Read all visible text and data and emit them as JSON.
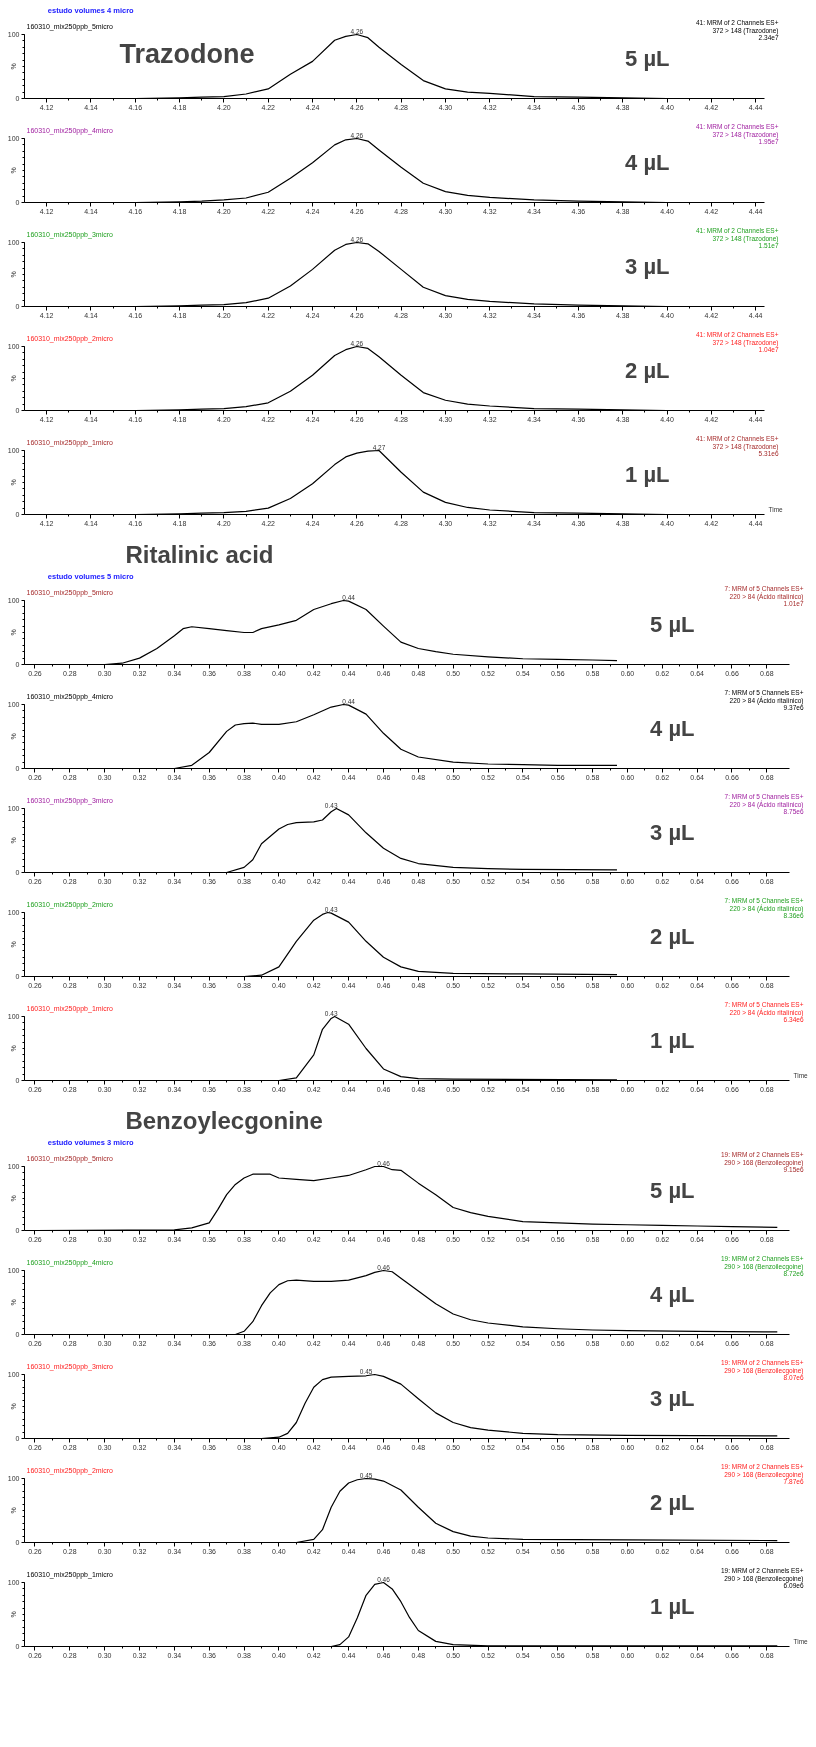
{
  "chart_data": [
    {
      "type": "line",
      "subtitle": "estudo volumes 4 micro",
      "title": "160310_mix250ppb_5micro",
      "ylabel": "%",
      "color": "#000000",
      "x": [
        4.115,
        4.14,
        4.16,
        4.18,
        4.19,
        4.2,
        4.21,
        4.22,
        4.23,
        4.24,
        4.25,
        4.255,
        4.26,
        4.265,
        4.27,
        4.28,
        4.29,
        4.3,
        4.31,
        4.32,
        4.34,
        4.36,
        4.38,
        4.4,
        4.42
      ],
      "values": [
        0,
        0,
        0,
        1,
        2,
        3,
        7,
        15,
        38,
        58,
        91,
        97,
        100,
        95,
        80,
        53,
        28,
        15,
        10,
        8,
        3,
        2,
        1,
        0,
        0
      ],
      "xlim": [
        4.11,
        4.444
      ],
      "ylim": [
        0,
        100
      ],
      "xticks": [
        4.12,
        4.14,
        4.16,
        4.18,
        {
          "value": 4.2,
          "label": "4.20"
        },
        4.22,
        4.24,
        4.26,
        4.28,
        {
          "value": 4.3,
          "label": "4.30"
        },
        4.32,
        4.34,
        4.36,
        4.38,
        {
          "value": 4.4,
          "label": "4.40"
        },
        4.42,
        4.44
      ],
      "yticks": [
        0,
        100
      ],
      "annotations": [
        "Trazodone",
        "5 µL",
        "41: MRM of 2 Channels ES+",
        "372 > 148 (Trazodone)",
        "2.34e7",
        {
          "text": "4.26",
          "x": 4.26,
          "y": 100
        }
      ]
    },
    {
      "type": "line",
      "title": "160310_mix250ppb_4micro",
      "ylabel": "%",
      "color": "#000000",
      "x": [
        4.115,
        4.14,
        4.16,
        4.18,
        4.19,
        4.2,
        4.21,
        4.22,
        4.23,
        4.24,
        4.25,
        4.255,
        4.26,
        4.265,
        4.27,
        4.28,
        4.29,
        4.3,
        4.31,
        4.32,
        4.34,
        4.36,
        4.38,
        4.4,
        4.42
      ],
      "values": [
        0,
        0,
        0,
        1,
        2,
        4,
        7,
        16,
        38,
        62,
        90,
        98,
        100,
        96,
        82,
        55,
        30,
        17,
        11,
        8,
        4,
        2,
        1,
        0,
        0
      ],
      "xlim": [
        4.11,
        4.444
      ],
      "ylim": [
        0,
        100
      ],
      "xticks": [
        4.12,
        4.14,
        4.16,
        4.18,
        {
          "value": 4.2,
          "label": "4.20"
        },
        4.22,
        4.24,
        4.26,
        4.28,
        {
          "value": 4.3,
          "label": "4.30"
        },
        4.32,
        4.34,
        4.36,
        4.38,
        {
          "value": 4.4,
          "label": "4.40"
        },
        4.42,
        4.44
      ],
      "yticks": [
        0,
        100
      ],
      "annotations": [
        "4 µL",
        "41: MRM of 2 Channels ES+",
        "372 > 148 (Trazodone)",
        "1.95e7",
        {
          "text": "4.26",
          "x": 4.26,
          "y": 100
        }
      ]
    },
    {
      "type": "line",
      "title": "160310_mix250ppb_3micro",
      "ylabel": "%",
      "color": "#000000",
      "x": [
        4.115,
        4.14,
        4.16,
        4.18,
        4.19,
        4.2,
        4.21,
        4.22,
        4.23,
        4.24,
        4.25,
        4.255,
        4.26,
        4.265,
        4.27,
        4.28,
        4.29,
        4.3,
        4.31,
        4.32,
        4.34,
        4.36,
        4.38,
        4.4,
        4.42
      ],
      "values": [
        0,
        0,
        0,
        1,
        2,
        3,
        6,
        13,
        32,
        58,
        88,
        97,
        100,
        98,
        86,
        58,
        30,
        17,
        11,
        8,
        4,
        2,
        1,
        0,
        0
      ],
      "xlim": [
        4.11,
        4.444
      ],
      "ylim": [
        0,
        100
      ],
      "xticks": [
        4.12,
        4.14,
        4.16,
        4.18,
        {
          "value": 4.2,
          "label": "4.20"
        },
        4.22,
        4.24,
        4.26,
        4.28,
        {
          "value": 4.3,
          "label": "4.30"
        },
        4.32,
        4.34,
        4.36,
        4.38,
        {
          "value": 4.4,
          "label": "4.40"
        },
        4.42,
        4.44
      ],
      "yticks": [
        0,
        100
      ],
      "annotations": [
        "3 µL",
        "41: MRM of 2 Channels ES+",
        "372 > 148 (Trazodone)",
        "1.51e7",
        {
          "text": "4.26",
          "x": 4.26,
          "y": 100
        }
      ]
    },
    {
      "type": "line",
      "title": "160310_mix250ppb_2micro",
      "ylabel": "%",
      "color": "#000000",
      "x": [
        4.115,
        4.14,
        4.16,
        4.18,
        4.19,
        4.2,
        4.21,
        4.22,
        4.23,
        4.24,
        4.25,
        4.255,
        4.26,
        4.265,
        4.27,
        4.28,
        4.29,
        4.3,
        4.31,
        4.32,
        4.34,
        4.36,
        4.38,
        4.4,
        4.42
      ],
      "values": [
        0,
        0,
        0,
        1,
        2,
        3,
        6,
        12,
        30,
        55,
        86,
        95,
        100,
        97,
        84,
        55,
        28,
        16,
        10,
        7,
        3,
        2,
        1,
        0,
        0
      ],
      "xlim": [
        4.11,
        4.444
      ],
      "ylim": [
        0,
        100
      ],
      "xticks": [
        4.12,
        4.14,
        4.16,
        4.18,
        {
          "value": 4.2,
          "label": "4.20"
        },
        4.22,
        4.24,
        4.26,
        4.28,
        {
          "value": 4.3,
          "label": "4.30"
        },
        4.32,
        4.34,
        4.36,
        4.38,
        {
          "value": 4.4,
          "label": "4.40"
        },
        4.42,
        4.44
      ],
      "yticks": [
        0,
        100
      ],
      "annotations": [
        "2 µL",
        "41: MRM of 2 Channels ES+",
        "372 > 148 (Trazodone)",
        "1.04e7",
        {
          "text": "4.26",
          "x": 4.26,
          "y": 100
        }
      ]
    },
    {
      "type": "line",
      "title": "160310_mix250ppb_1micro",
      "xlabel": "Time",
      "ylabel": "%",
      "color": "#000000",
      "x": [
        4.115,
        4.14,
        4.16,
        4.18,
        4.19,
        4.2,
        4.21,
        4.22,
        4.23,
        4.24,
        4.25,
        4.255,
        4.26,
        4.265,
        4.27,
        4.28,
        4.29,
        4.3,
        4.31,
        4.32,
        4.34,
        4.36,
        4.38,
        4.4,
        4.42
      ],
      "values": [
        0,
        0,
        0,
        1,
        2,
        3,
        5,
        10,
        25,
        48,
        78,
        90,
        96,
        99,
        100,
        66,
        35,
        19,
        11,
        7,
        3,
        2,
        1,
        0,
        0
      ],
      "xlim": [
        4.11,
        4.444
      ],
      "ylim": [
        0,
        100
      ],
      "xticks": [
        4.12,
        4.14,
        4.16,
        4.18,
        {
          "value": 4.2,
          "label": "4.20"
        },
        4.22,
        4.24,
        4.26,
        4.28,
        {
          "value": 4.3,
          "label": "4.30"
        },
        4.32,
        4.34,
        4.36,
        4.38,
        {
          "value": 4.4,
          "label": "4.40"
        },
        4.42,
        4.44
      ],
      "yticks": [
        0,
        100
      ],
      "annotations": [
        "1 µL",
        "41: MRM of 2 Channels ES+",
        "372 > 148 (Trazodone)",
        "5.31e6",
        {
          "text": "4.27",
          "x": 4.27,
          "y": 100
        }
      ]
    },
    {
      "type": "line",
      "subtitle": "estudo volumes 5 micro",
      "title": "160310_mix250ppb_5micro",
      "ylabel": "%",
      "color": "#000000",
      "x": [
        0.26,
        0.3,
        0.31,
        0.32,
        0.33,
        0.34,
        0.345,
        0.35,
        0.36,
        0.37,
        0.38,
        0.385,
        0.39,
        0.4,
        0.41,
        0.42,
        0.43,
        0.437,
        0.44,
        0.45,
        0.46,
        0.47,
        0.48,
        0.49,
        0.5,
        0.52,
        0.54,
        0.56,
        0.58,
        0.594
      ],
      "values": [
        0,
        0,
        2,
        10,
        25,
        45,
        56,
        59,
        56,
        53,
        50,
        50,
        56,
        62,
        69,
        86,
        95,
        100,
        99,
        86,
        60,
        35,
        25,
        20,
        16,
        12,
        9,
        8,
        7,
        6
      ],
      "xlim": [
        0.254,
        0.693
      ],
      "ylim": [
        0,
        100
      ],
      "xticks": [
        0.26,
        0.28,
        {
          "value": 0.3,
          "label": "0.30"
        },
        0.32,
        0.34,
        0.36,
        0.38,
        {
          "value": 0.4,
          "label": "0.40"
        },
        0.42,
        0.44,
        0.46,
        0.48,
        {
          "value": 0.5,
          "label": "0.50"
        },
        0.52,
        0.54,
        0.56,
        0.58,
        {
          "value": 0.6,
          "label": "0.60"
        },
        0.62,
        0.64,
        0.66,
        0.68
      ],
      "yticks": [
        0,
        100
      ],
      "annotations": [
        "Ritalinic acid",
        "5 µL",
        "7: MRM of 5 Channels ES+",
        "220 > 84 (Ácido ritalínico)",
        "1.01e7",
        {
          "text": "0.44",
          "x": 0.44,
          "y": 100
        }
      ]
    },
    {
      "type": "line",
      "title": "160310_mix250ppb_4micro",
      "ylabel": "%",
      "color": "#000000",
      "x": [
        0.26,
        0.34,
        0.35,
        0.36,
        0.37,
        0.375,
        0.38,
        0.385,
        0.39,
        0.4,
        0.41,
        0.42,
        0.43,
        0.437,
        0.44,
        0.45,
        0.46,
        0.47,
        0.48,
        0.5,
        0.52,
        0.54,
        0.56,
        0.594
      ],
      "values": [
        0,
        0,
        5,
        25,
        58,
        68,
        70,
        71,
        69,
        69,
        73,
        84,
        96,
        100,
        99,
        85,
        55,
        30,
        18,
        10,
        7,
        6,
        5,
        5
      ],
      "xlim": [
        0.254,
        0.693
      ],
      "ylim": [
        0,
        100
      ],
      "xticks": [
        0.26,
        0.28,
        {
          "value": 0.3,
          "label": "0.30"
        },
        0.32,
        0.34,
        0.36,
        0.38,
        {
          "value": 0.4,
          "label": "0.40"
        },
        0.42,
        0.44,
        0.46,
        0.48,
        {
          "value": 0.5,
          "label": "0.50"
        },
        0.52,
        0.54,
        0.56,
        0.58,
        {
          "value": 0.6,
          "label": "0.60"
        },
        0.62,
        0.64,
        0.66,
        0.68
      ],
      "yticks": [
        0,
        100
      ],
      "annotations": [
        "4 µL",
        "7: MRM of 5 Channels ES+",
        "220 > 84 (Ácido ritalínico)",
        "9.37e6",
        {
          "text": "0.44",
          "x": 0.44,
          "y": 100
        }
      ]
    },
    {
      "type": "line",
      "title": "160310_mix250ppb_3micro",
      "ylabel": "%",
      "color": "#000000",
      "x": [
        0.26,
        0.37,
        0.38,
        0.385,
        0.39,
        0.4,
        0.405,
        0.41,
        0.42,
        0.425,
        0.43,
        0.433,
        0.44,
        0.45,
        0.46,
        0.47,
        0.48,
        0.5,
        0.52,
        0.54,
        0.594
      ],
      "values": [
        0,
        0,
        8,
        20,
        45,
        68,
        75,
        78,
        79,
        82,
        95,
        100,
        90,
        62,
        38,
        22,
        14,
        8,
        6,
        5,
        4
      ],
      "xlim": [
        0.254,
        0.693
      ],
      "ylim": [
        0,
        100
      ],
      "xticks": [
        0.26,
        0.28,
        {
          "value": 0.3,
          "label": "0.30"
        },
        0.32,
        0.34,
        0.36,
        0.38,
        {
          "value": 0.4,
          "label": "0.40"
        },
        0.42,
        0.44,
        0.46,
        0.48,
        {
          "value": 0.5,
          "label": "0.50"
        },
        0.52,
        0.54,
        0.56,
        0.58,
        {
          "value": 0.6,
          "label": "0.60"
        },
        0.62,
        0.64,
        0.66,
        0.68
      ],
      "yticks": [
        0,
        100
      ],
      "annotations": [
        "3 µL",
        "7: MRM of 5 Channels ES+",
        "220 > 84 (Ácido ritalínico)",
        "8.75e6",
        {
          "text": "0.43",
          "x": 0.43,
          "y": 100
        }
      ]
    },
    {
      "type": "line",
      "title": "160310_mix250ppb_2micro",
      "ylabel": "%",
      "color": "#000000",
      "x": [
        0.26,
        0.38,
        0.39,
        0.4,
        0.41,
        0.42,
        0.425,
        0.428,
        0.43,
        0.44,
        0.45,
        0.46,
        0.47,
        0.48,
        0.5,
        0.54,
        0.594
      ],
      "values": [
        0,
        0,
        2,
        15,
        55,
        88,
        97,
        100,
        99,
        85,
        55,
        30,
        15,
        8,
        5,
        4,
        3
      ],
      "xlim": [
        0.254,
        0.693
      ],
      "ylim": [
        0,
        100
      ],
      "xticks": [
        0.26,
        0.28,
        {
          "value": 0.3,
          "label": "0.30"
        },
        0.32,
        0.34,
        0.36,
        0.38,
        {
          "value": 0.4,
          "label": "0.40"
        },
        0.42,
        0.44,
        0.46,
        0.48,
        {
          "value": 0.5,
          "label": "0.50"
        },
        0.52,
        0.54,
        0.56,
        0.58,
        {
          "value": 0.6,
          "label": "0.60"
        },
        0.62,
        0.64,
        0.66,
        0.68
      ],
      "yticks": [
        0,
        100
      ],
      "annotations": [
        "2 µL",
        "7: MRM of 5 Channels ES+",
        "220 > 84 (Ácido ritalínico)",
        "8.36e6",
        {
          "text": "0.43",
          "x": 0.43,
          "y": 100
        }
      ]
    },
    {
      "type": "line",
      "title": "160310_mix250ppb_1micro",
      "xlabel": "Time",
      "ylabel": "%",
      "color": "#000000",
      "x": [
        0.26,
        0.4,
        0.41,
        0.42,
        0.425,
        0.43,
        0.432,
        0.44,
        0.45,
        0.46,
        0.47,
        0.48,
        0.5,
        0.594
      ],
      "values": [
        0,
        0,
        4,
        40,
        80,
        97,
        100,
        88,
        50,
        18,
        6,
        3,
        2,
        1
      ],
      "xlim": [
        0.254,
        0.693
      ],
      "ylim": [
        0,
        100
      ],
      "xticks": [
        0.26,
        0.28,
        {
          "value": 0.3,
          "label": "0.30"
        },
        0.32,
        0.34,
        0.36,
        0.38,
        {
          "value": 0.4,
          "label": "0.40"
        },
        0.42,
        0.44,
        0.46,
        0.48,
        {
          "value": 0.5,
          "label": "0.50"
        },
        0.52,
        0.54,
        0.56,
        0.58,
        {
          "value": 0.6,
          "label": "0.60"
        },
        0.62,
        0.64,
        0.66,
        0.68
      ],
      "yticks": [
        0,
        100
      ],
      "annotations": [
        "1 µL",
        "7: MRM of 5 Channels ES+",
        "220 > 84 (Ácido ritalínico)",
        "6.34e6",
        {
          "text": "0.43",
          "x": 0.43,
          "y": 100
        }
      ]
    },
    {
      "type": "line",
      "subtitle": "estudo volumes 3 micro",
      "title": "160310_mix250ppb_5micro",
      "ylabel": "%",
      "color": "#000000",
      "x": [
        0.26,
        0.34,
        0.35,
        0.36,
        0.365,
        0.37,
        0.375,
        0.38,
        0.385,
        0.39,
        0.395,
        0.4,
        0.41,
        0.42,
        0.43,
        0.44,
        0.45,
        0.455,
        0.46,
        0.465,
        0.47,
        0.48,
        0.49,
        0.5,
        0.51,
        0.52,
        0.54,
        0.56,
        0.58,
        0.6,
        0.62,
        0.64,
        0.66,
        0.686
      ],
      "values": [
        0,
        1,
        4,
        12,
        33,
        56,
        72,
        82,
        88,
        88,
        88,
        82,
        80,
        78,
        82,
        86,
        95,
        100,
        100,
        95,
        94,
        74,
        56,
        36,
        28,
        22,
        14,
        12,
        10,
        9,
        8,
        7,
        6,
        5
      ],
      "xlim": [
        0.254,
        0.693
      ],
      "ylim": [
        0,
        100
      ],
      "xticks": [
        0.26,
        0.28,
        {
          "value": 0.3,
          "label": "0.30"
        },
        0.32,
        0.34,
        0.36,
        0.38,
        {
          "value": 0.4,
          "label": "0.40"
        },
        0.42,
        0.44,
        0.46,
        0.48,
        {
          "value": 0.5,
          "label": "0.50"
        },
        0.52,
        0.54,
        0.56,
        0.58,
        {
          "value": 0.6,
          "label": "0.60"
        },
        0.62,
        0.64,
        0.66,
        0.68
      ],
      "yticks": [
        0,
        100
      ],
      "annotations": [
        "Benzoylecgonine",
        "5 µL",
        "19: MRM of 2 Channels ES+",
        "290 > 168 (Benzoilecgoine)",
        "9.15e6",
        {
          "text": "0.46",
          "x": 0.46,
          "y": 100
        }
      ]
    },
    {
      "type": "line",
      "title": "160310_mix250ppb_4micro",
      "ylabel": "%",
      "color": "#000000",
      "x": [
        0.26,
        0.375,
        0.38,
        0.385,
        0.39,
        0.395,
        0.4,
        0.405,
        0.41,
        0.42,
        0.43,
        0.44,
        0.45,
        0.455,
        0.46,
        0.465,
        0.47,
        0.48,
        0.49,
        0.5,
        0.51,
        0.52,
        0.54,
        0.56,
        0.58,
        0.6,
        0.64,
        0.686
      ],
      "values": [
        0,
        0,
        5,
        20,
        45,
        65,
        78,
        84,
        85,
        83,
        83,
        85,
        92,
        97,
        100,
        98,
        88,
        68,
        48,
        32,
        23,
        18,
        12,
        9,
        7,
        6,
        5,
        4
      ],
      "xlim": [
        0.254,
        0.693
      ],
      "ylim": [
        0,
        100
      ],
      "xticks": [
        0.26,
        0.28,
        {
          "value": 0.3,
          "label": "0.30"
        },
        0.32,
        0.34,
        0.36,
        0.38,
        {
          "value": 0.4,
          "label": "0.40"
        },
        0.42,
        0.44,
        0.46,
        0.48,
        {
          "value": 0.5,
          "label": "0.50"
        },
        0.52,
        0.54,
        0.56,
        0.58,
        {
          "value": 0.6,
          "label": "0.60"
        },
        0.62,
        0.64,
        0.66,
        0.68
      ],
      "yticks": [
        0,
        100
      ],
      "annotations": [
        "4 µL",
        "19: MRM of 2 Channels ES+",
        "290 > 168 (Benzoilecgoine)",
        "8.72e6",
        {
          "text": "0.46",
          "x": 0.46,
          "y": 100
        }
      ]
    },
    {
      "type": "line",
      "title": "160310_mix250ppb_3micro",
      "ylabel": "%",
      "color": "#000000",
      "x": [
        0.26,
        0.39,
        0.4,
        0.405,
        0.41,
        0.415,
        0.42,
        0.425,
        0.43,
        0.44,
        0.45,
        0.455,
        0.46,
        0.47,
        0.48,
        0.49,
        0.5,
        0.51,
        0.52,
        0.54,
        0.56,
        0.6,
        0.686
      ],
      "values": [
        0,
        0,
        2,
        8,
        25,
        55,
        80,
        92,
        96,
        97,
        98,
        100,
        97,
        85,
        62,
        40,
        25,
        17,
        13,
        8,
        6,
        5,
        4
      ],
      "xlim": [
        0.254,
        0.693
      ],
      "ylim": [
        0,
        100
      ],
      "xticks": [
        0.26,
        0.28,
        {
          "value": 0.3,
          "label": "0.30"
        },
        0.32,
        0.34,
        0.36,
        0.38,
        {
          "value": 0.4,
          "label": "0.40"
        },
        0.42,
        0.44,
        0.46,
        0.48,
        {
          "value": 0.5,
          "label": "0.50"
        },
        0.52,
        0.54,
        0.56,
        0.58,
        {
          "value": 0.6,
          "label": "0.60"
        },
        0.62,
        0.64,
        0.66,
        0.68
      ],
      "yticks": [
        0,
        100
      ],
      "annotations": [
        "3 µL",
        "19: MRM of 2 Channels ES+",
        "290 > 168 (Benzoilecgoine)",
        "8.07e6",
        {
          "text": "0.45",
          "x": 0.45,
          "y": 100
        }
      ]
    },
    {
      "type": "line",
      "title": "160310_mix250ppb_2micro",
      "ylabel": "%",
      "color": "#000000",
      "x": [
        0.26,
        0.41,
        0.42,
        0.425,
        0.43,
        0.435,
        0.44,
        0.445,
        0.45,
        0.455,
        0.46,
        0.47,
        0.48,
        0.49,
        0.5,
        0.51,
        0.52,
        0.54,
        0.6,
        0.686
      ],
      "values": [
        0,
        0,
        5,
        20,
        55,
        80,
        93,
        98,
        100,
        99,
        96,
        82,
        55,
        30,
        17,
        10,
        7,
        5,
        4,
        3
      ],
      "xlim": [
        0.254,
        0.693
      ],
      "ylim": [
        0,
        100
      ],
      "xticks": [
        0.26,
        0.28,
        {
          "value": 0.3,
          "label": "0.30"
        },
        0.32,
        0.34,
        0.36,
        0.38,
        {
          "value": 0.4,
          "label": "0.40"
        },
        0.42,
        0.44,
        0.46,
        0.48,
        {
          "value": 0.5,
          "label": "0.50"
        },
        0.52,
        0.54,
        0.56,
        0.58,
        {
          "value": 0.6,
          "label": "0.60"
        },
        0.62,
        0.64,
        0.66,
        0.68
      ],
      "yticks": [
        0,
        100
      ],
      "annotations": [
        "2 µL",
        "19: MRM of 2 Channels ES+",
        "290 > 168 (Benzoilecgoine)",
        "7.87e6",
        {
          "text": "0.45",
          "x": 0.45,
          "y": 100
        }
      ]
    },
    {
      "type": "line",
      "title": "160310_mix250ppb_1micro",
      "xlabel": "Time",
      "ylabel": "%",
      "color": "#000000",
      "x": [
        0.26,
        0.43,
        0.435,
        0.44,
        0.445,
        0.45,
        0.455,
        0.46,
        0.465,
        0.47,
        0.475,
        0.48,
        0.49,
        0.5,
        0.52,
        0.56,
        0.686
      ],
      "values": [
        0,
        0,
        3,
        15,
        45,
        80,
        97,
        100,
        90,
        70,
        45,
        25,
        8,
        3,
        1,
        1,
        1
      ],
      "xlim": [
        0.254,
        0.693
      ],
      "ylim": [
        0,
        100
      ],
      "xticks": [
        0.26,
        0.28,
        {
          "value": 0.3,
          "label": "0.30"
        },
        0.32,
        0.34,
        0.36,
        0.38,
        {
          "value": 0.4,
          "label": "0.40"
        },
        0.42,
        0.44,
        0.46,
        0.48,
        {
          "value": 0.5,
          "label": "0.50"
        },
        0.52,
        0.54,
        0.56,
        0.58,
        {
          "value": 0.6,
          "label": "0.60"
        },
        0.62,
        0.64,
        0.66,
        0.68
      ],
      "yticks": [
        0,
        100
      ],
      "annotations": [
        "1 µL",
        "19: MRM of 2 Channels ES+",
        "290 > 168 (Benzoilecgoine)",
        "6.09e6",
        {
          "text": "0.46",
          "x": 0.46,
          "y": 100
        }
      ]
    }
  ]
}
